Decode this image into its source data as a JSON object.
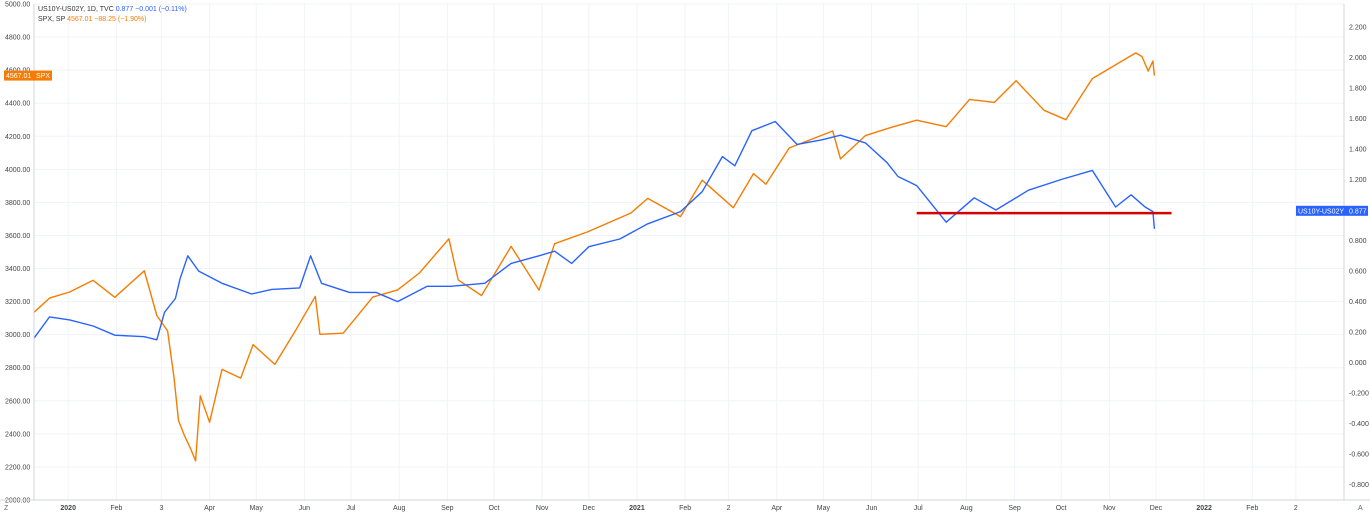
{
  "legend": {
    "spread_name": "US10Y-US02Y, 1D, TVC",
    "spread_values": "0.877  −0.001 (−0.11%)",
    "spx_name": "SPX, SP",
    "spx_values": "4567.01  −88.25 (−1.90%)"
  },
  "badges": {
    "spx_value": "4567.01",
    "spx_symbol": "SPX",
    "spread_symbol": "US10Y-US02Y",
    "spread_value": "0.877"
  },
  "corner": {
    "left": "Z",
    "right": "A"
  },
  "colors": {
    "spx": "#f57c00",
    "spread": "#2962ff",
    "support_line": "#d50000"
  },
  "chart_data": {
    "type": "line",
    "x_ticks": [
      {
        "label": "2020",
        "date": "2020-01-01",
        "bold": true
      },
      {
        "label": "Feb",
        "date": "2020-02-01"
      },
      {
        "label": "3",
        "date": "2020-03-01"
      },
      {
        "label": "Apr",
        "date": "2020-04-01"
      },
      {
        "label": "May",
        "date": "2020-05-01"
      },
      {
        "label": "Jun",
        "date": "2020-06-01"
      },
      {
        "label": "Jul",
        "date": "2020-07-01"
      },
      {
        "label": "Aug",
        "date": "2020-08-01"
      },
      {
        "label": "Sep",
        "date": "2020-09-01"
      },
      {
        "label": "Oct",
        "date": "2020-10-01"
      },
      {
        "label": "Nov",
        "date": "2020-11-01"
      },
      {
        "label": "Dec",
        "date": "2020-12-01"
      },
      {
        "label": "2021",
        "date": "2021-01-01",
        "bold": true
      },
      {
        "label": "Feb",
        "date": "2021-02-01"
      },
      {
        "label": "2",
        "date": "2021-03-01"
      },
      {
        "label": "Apr",
        "date": "2021-04-01"
      },
      {
        "label": "May",
        "date": "2021-05-01"
      },
      {
        "label": "Jun",
        "date": "2021-06-01"
      },
      {
        "label": "Jul",
        "date": "2021-07-01"
      },
      {
        "label": "Aug",
        "date": "2021-08-01"
      },
      {
        "label": "Sep",
        "date": "2021-09-01"
      },
      {
        "label": "Oct",
        "date": "2021-10-01"
      },
      {
        "label": "Nov",
        "date": "2021-11-01"
      },
      {
        "label": "Dec",
        "date": "2021-12-01"
      },
      {
        "label": "2022",
        "date": "2022-01-01",
        "bold": true
      },
      {
        "label": "Feb",
        "date": "2022-02-01"
      },
      {
        "label": "2",
        "date": "2022-03-01"
      }
    ],
    "x_range": [
      "2019-12-10",
      "2022-04-01"
    ],
    "left_axis": {
      "series": "SPX",
      "range": [
        2000,
        5000
      ],
      "ticks": [
        "2000.00",
        "2200.00",
        "2400.00",
        "2600.00",
        "2800.00",
        "3000.00",
        "3200.00",
        "3400.00",
        "3600.00",
        "3800.00",
        "4000.00",
        "4200.00",
        "4400.00",
        "4600.00",
        "4800.00",
        "5000.00"
      ]
    },
    "right_axis": {
      "series": "US10Y-US02Y",
      "range": [
        -0.9,
        2.35
      ],
      "ticks": [
        "-0.800",
        "-0.600",
        "-0.400",
        "-0.200",
        "0.000",
        "0.200",
        "0.400",
        "0.600",
        "0.800",
        "1.000",
        "1.200",
        "1.400",
        "1.600",
        "1.800",
        "2.000",
        "2.200"
      ]
    },
    "series": [
      {
        "name": "SPX",
        "axis": "left",
        "color": "#f57c00",
        "points": [
          [
            "2019-12-10",
            3135
          ],
          [
            "2019-12-20",
            3221
          ],
          [
            "2020-01-02",
            3258
          ],
          [
            "2020-01-17",
            3329
          ],
          [
            "2020-01-31",
            3226
          ],
          [
            "2020-02-19",
            3386
          ],
          [
            "2020-02-27",
            3116
          ],
          [
            "2020-03-05",
            3023
          ],
          [
            "2020-03-09",
            2746
          ],
          [
            "2020-03-12",
            2481
          ],
          [
            "2020-03-16",
            2386
          ],
          [
            "2020-03-20",
            2305
          ],
          [
            "2020-03-23",
            2237
          ],
          [
            "2020-03-26",
            2630
          ],
          [
            "2020-04-01",
            2470
          ],
          [
            "2020-04-09",
            2790
          ],
          [
            "2020-04-21",
            2737
          ],
          [
            "2020-04-29",
            2940
          ],
          [
            "2020-05-13",
            2820
          ],
          [
            "2020-05-27",
            3036
          ],
          [
            "2020-06-08",
            3232
          ],
          [
            "2020-06-11",
            3002
          ],
          [
            "2020-06-26",
            3009
          ],
          [
            "2020-07-15",
            3227
          ],
          [
            "2020-07-31",
            3271
          ],
          [
            "2020-08-14",
            3373
          ],
          [
            "2020-09-02",
            3580
          ],
          [
            "2020-09-08",
            3331
          ],
          [
            "2020-09-23",
            3237
          ],
          [
            "2020-10-12",
            3534
          ],
          [
            "2020-10-30",
            3270
          ],
          [
            "2020-11-09",
            3550
          ],
          [
            "2020-11-30",
            3621
          ],
          [
            "2020-12-28",
            3735
          ],
          [
            "2021-01-08",
            3824
          ],
          [
            "2021-01-29",
            3714
          ],
          [
            "2021-02-12",
            3934
          ],
          [
            "2021-03-04",
            3768
          ],
          [
            "2021-03-17",
            3974
          ],
          [
            "2021-03-25",
            3910
          ],
          [
            "2021-04-09",
            4129
          ],
          [
            "2021-05-07",
            4232
          ],
          [
            "2021-05-12",
            4063
          ],
          [
            "2021-05-28",
            4204
          ],
          [
            "2021-06-14",
            4255
          ],
          [
            "2021-06-30",
            4297
          ],
          [
            "2021-07-19",
            4258
          ],
          [
            "2021-08-03",
            4423
          ],
          [
            "2021-08-19",
            4405
          ],
          [
            "2021-09-02",
            4536
          ],
          [
            "2021-09-20",
            4357
          ],
          [
            "2021-10-04",
            4300
          ],
          [
            "2021-10-21",
            4549
          ],
          [
            "2021-11-18",
            4704
          ],
          [
            "2021-11-22",
            4682
          ],
          [
            "2021-11-26",
            4594
          ],
          [
            "2021-11-29",
            4655
          ],
          [
            "2021-11-30",
            4567
          ]
        ]
      },
      {
        "name": "US10Y-US02Y",
        "axis": "right",
        "color": "#2962ff",
        "points": [
          [
            "2019-12-10",
            0.16
          ],
          [
            "2019-12-20",
            0.3
          ],
          [
            "2020-01-02",
            0.28
          ],
          [
            "2020-01-17",
            0.24
          ],
          [
            "2020-01-31",
            0.18
          ],
          [
            "2020-02-19",
            0.17
          ],
          [
            "2020-02-27",
            0.15
          ],
          [
            "2020-03-03",
            0.33
          ],
          [
            "2020-03-10",
            0.42
          ],
          [
            "2020-03-13",
            0.55
          ],
          [
            "2020-03-18",
            0.7
          ],
          [
            "2020-03-25",
            0.6
          ],
          [
            "2020-04-09",
            0.52
          ],
          [
            "2020-04-28",
            0.45
          ],
          [
            "2020-05-11",
            0.48
          ],
          [
            "2020-05-29",
            0.49
          ],
          [
            "2020-06-05",
            0.7
          ],
          [
            "2020-06-12",
            0.52
          ],
          [
            "2020-06-30",
            0.46
          ],
          [
            "2020-07-17",
            0.46
          ],
          [
            "2020-07-31",
            0.4
          ],
          [
            "2020-08-19",
            0.5
          ],
          [
            "2020-09-03",
            0.5
          ],
          [
            "2020-09-25",
            0.52
          ],
          [
            "2020-10-12",
            0.65
          ],
          [
            "2020-10-30",
            0.7
          ],
          [
            "2020-11-09",
            0.73
          ],
          [
            "2020-11-20",
            0.65
          ],
          [
            "2020-12-01",
            0.76
          ],
          [
            "2020-12-21",
            0.81
          ],
          [
            "2021-01-08",
            0.91
          ],
          [
            "2021-01-29",
            0.99
          ],
          [
            "2021-02-12",
            1.12
          ],
          [
            "2021-02-25",
            1.35
          ],
          [
            "2021-03-05",
            1.29
          ],
          [
            "2021-03-16",
            1.52
          ],
          [
            "2021-03-31",
            1.58
          ],
          [
            "2021-04-14",
            1.43
          ],
          [
            "2021-04-30",
            1.46
          ],
          [
            "2021-05-12",
            1.49
          ],
          [
            "2021-05-28",
            1.44
          ],
          [
            "2021-06-11",
            1.31
          ],
          [
            "2021-06-18",
            1.22
          ],
          [
            "2021-06-30",
            1.16
          ],
          [
            "2021-07-19",
            0.92
          ],
          [
            "2021-08-06",
            1.08
          ],
          [
            "2021-08-20",
            1.0
          ],
          [
            "2021-09-10",
            1.13
          ],
          [
            "2021-10-01",
            1.2
          ],
          [
            "2021-10-21",
            1.26
          ],
          [
            "2021-11-05",
            1.02
          ],
          [
            "2021-11-15",
            1.1
          ],
          [
            "2021-11-24",
            1.02
          ],
          [
            "2021-11-29",
            0.99
          ],
          [
            "2021-11-30",
            0.877
          ]
        ]
      }
    ],
    "annotations": [
      {
        "type": "horizontal_line",
        "axis": "right",
        "y": 0.98,
        "x_start": "2021-06-30",
        "x_end": "2021-12-11",
        "color": "#d50000"
      }
    ]
  }
}
